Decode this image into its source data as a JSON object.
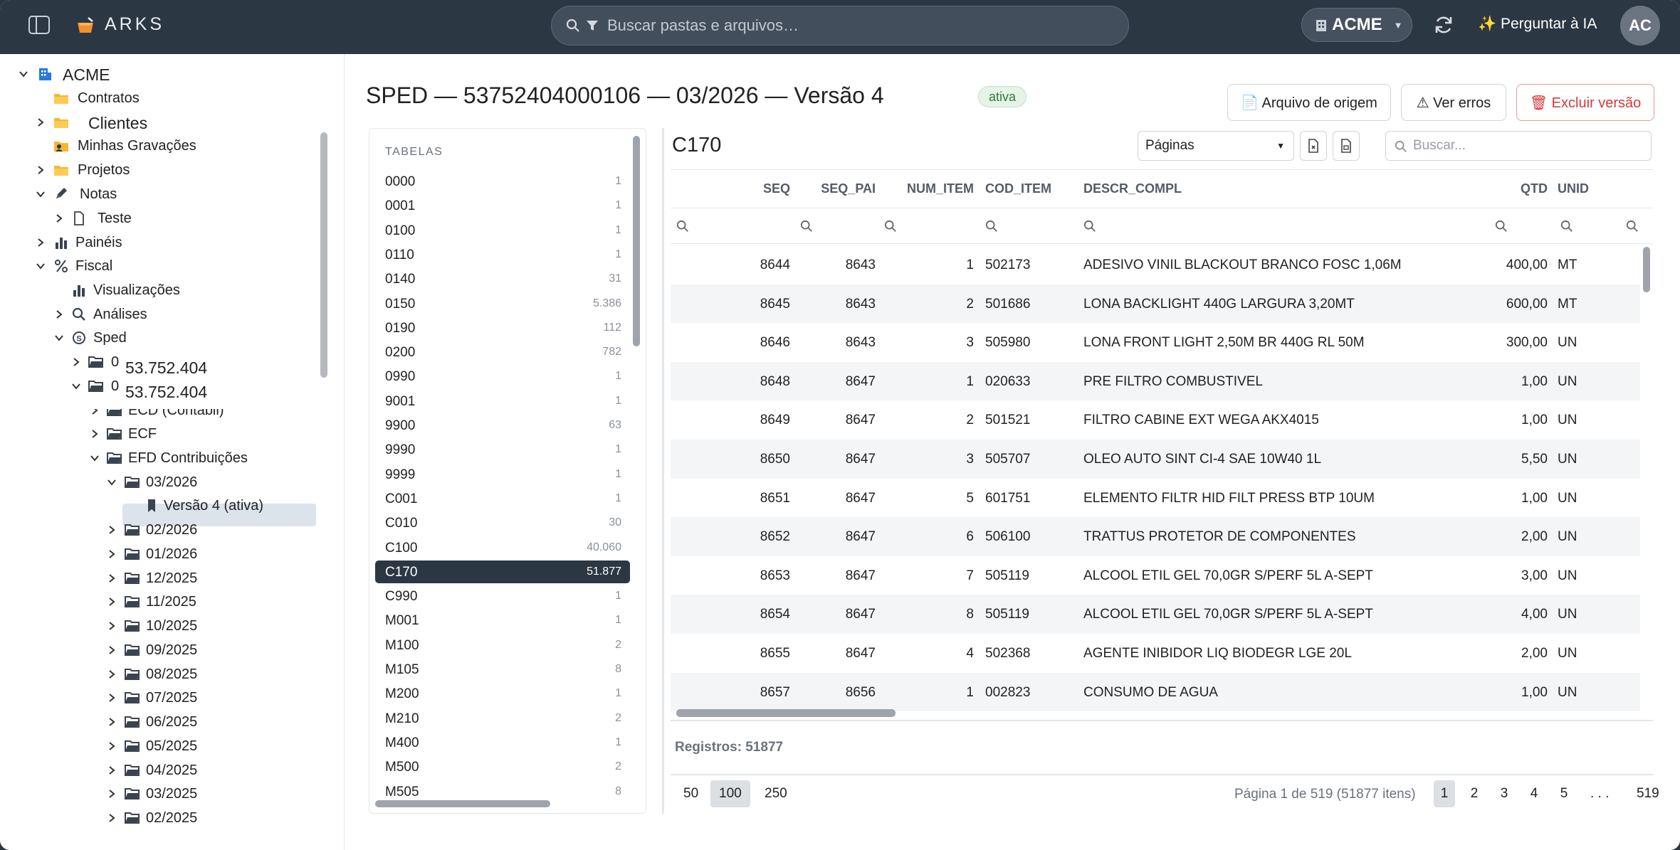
{
  "header": {
    "brand": "ARKS",
    "search_placeholder": "Buscar pastas e arquivos…",
    "tenant": "ACME",
    "ask_ai": "✨ Perguntar à IA",
    "avatar": "AC"
  },
  "sidebar": {
    "items": [
      {
        "label": "ACME",
        "icon": "building-icon"
      },
      {
        "label": "Contratos",
        "icon": "folder-icon"
      },
      {
        "label": "Clientes",
        "icon": "folder-icon"
      },
      {
        "label": "Minhas Gravações",
        "icon": "folder-user-icon"
      },
      {
        "label": "Projetos",
        "icon": "folder-icon"
      },
      {
        "label": "Notas",
        "icon": "pencil-icon"
      },
      {
        "label": "Teste",
        "icon": "file-icon"
      },
      {
        "label": "Painéis",
        "icon": "bar-chart-icon"
      },
      {
        "label": "Fiscal",
        "icon": "percent-icon"
      },
      {
        "label": "Visualizações",
        "icon": "bar-chart-icon"
      },
      {
        "label": "Análises",
        "icon": "search-icon"
      },
      {
        "label": "Sped",
        "icon": "coin-icon"
      },
      {
        "label": "0",
        "sub": "53.752.404",
        "icon": "folder-open-icon"
      },
      {
        "label": "0",
        "sub": "53.752.404",
        "icon": "folder-open-icon"
      },
      {
        "label": "ECD (Contábil)",
        "icon": "folder-open-icon"
      },
      {
        "label": "ECF",
        "icon": "folder-open-icon"
      },
      {
        "label": "EFD Contribuições",
        "icon": "folder-open-icon"
      },
      {
        "label": "03/2026",
        "icon": "folder-open-icon"
      },
      {
        "label": "Versão 4 (ativa)",
        "icon": "bookmark-icon"
      },
      {
        "label": "02/2026",
        "icon": "folder-open-icon"
      },
      {
        "label": "01/2026",
        "icon": "folder-open-icon"
      },
      {
        "label": "12/2025",
        "icon": "folder-open-icon"
      },
      {
        "label": "11/2025",
        "icon": "folder-open-icon"
      },
      {
        "label": "10/2025",
        "icon": "folder-open-icon"
      },
      {
        "label": "09/2025",
        "icon": "folder-open-icon"
      },
      {
        "label": "08/2025",
        "icon": "folder-open-icon"
      },
      {
        "label": "07/2025",
        "icon": "folder-open-icon"
      },
      {
        "label": "06/2025",
        "icon": "folder-open-icon"
      },
      {
        "label": "05/2025",
        "icon": "folder-open-icon"
      },
      {
        "label": "04/2025",
        "icon": "folder-open-icon"
      },
      {
        "label": "03/2025",
        "icon": "folder-open-icon"
      },
      {
        "label": "02/2025",
        "icon": "folder-open-icon"
      }
    ]
  },
  "main": {
    "title": "SPED — 53752404000106 — 03/2026 — Versão 4",
    "status_badge": "ativa",
    "buttons": {
      "origin": "📄 Arquivo de origem",
      "errors": "⚠ Ver erros",
      "delete": "🗑 Excluir versão"
    },
    "tables_heading": "TABELAS",
    "tables": [
      {
        "name": "0000",
        "count": "1"
      },
      {
        "name": "0001",
        "count": "1"
      },
      {
        "name": "0100",
        "count": "1"
      },
      {
        "name": "0110",
        "count": "1"
      },
      {
        "name": "0140",
        "count": "31"
      },
      {
        "name": "0150",
        "count": "5.386"
      },
      {
        "name": "0190",
        "count": "112"
      },
      {
        "name": "0200",
        "count": "782"
      },
      {
        "name": "0990",
        "count": "1"
      },
      {
        "name": "9001",
        "count": "1"
      },
      {
        "name": "9900",
        "count": "63"
      },
      {
        "name": "9990",
        "count": "1"
      },
      {
        "name": "9999",
        "count": "1"
      },
      {
        "name": "C001",
        "count": "1"
      },
      {
        "name": "C010",
        "count": "30"
      },
      {
        "name": "C100",
        "count": "40.060"
      },
      {
        "name": "C170",
        "count": "51.877"
      },
      {
        "name": "C990",
        "count": "1"
      },
      {
        "name": "M001",
        "count": "1"
      },
      {
        "name": "M100",
        "count": "2"
      },
      {
        "name": "M105",
        "count": "8"
      },
      {
        "name": "M200",
        "count": "1"
      },
      {
        "name": "M210",
        "count": "2"
      },
      {
        "name": "M400",
        "count": "1"
      },
      {
        "name": "M500",
        "count": "2"
      },
      {
        "name": "M505",
        "count": "8"
      }
    ],
    "selected_table": "C170",
    "view_mode": "Páginas",
    "grid_search_placeholder": "Buscar...",
    "columns": [
      "SEQ",
      "SEQ_PAI",
      "NUM_ITEM",
      "COD_ITEM",
      "DESCR_COMPL",
      "QTD",
      "UNID"
    ],
    "rows": [
      [
        "8644",
        "8643",
        "1",
        "502173",
        "ADESIVO VINIL BLACKOUT BRANCO FOSC 1,06M",
        "400,00",
        "MT"
      ],
      [
        "8645",
        "8643",
        "2",
        "501686",
        "LONA BACKLIGHT 440G LARGURA 3,20MT",
        "600,00",
        "MT"
      ],
      [
        "8646",
        "8643",
        "3",
        "505980",
        "LONA FRONT LIGHT 2,50M BR 440G RL 50M",
        "300,00",
        "UN"
      ],
      [
        "8648",
        "8647",
        "1",
        "020633",
        "PRE FILTRO COMBUSTIVEL",
        "1,00",
        "UN"
      ],
      [
        "8649",
        "8647",
        "2",
        "501521",
        "FILTRO CABINE EXT WEGA AKX4015",
        "1,00",
        "UN"
      ],
      [
        "8650",
        "8647",
        "3",
        "505707",
        "OLEO AUTO SINT CI-4 SAE 10W40 1L",
        "5,50",
        "UN"
      ],
      [
        "8651",
        "8647",
        "5",
        "601751",
        "ELEMENTO FILTR HID FILT PRESS BTP 10UM",
        "1,00",
        "UN"
      ],
      [
        "8652",
        "8647",
        "6",
        "506100",
        "TRATTUS PROTETOR DE COMPONENTES",
        "2,00",
        "UN"
      ],
      [
        "8653",
        "8647",
        "7",
        "505119",
        "ALCOOL ETIL GEL 70,0GR S/PERF 5L A-SEPT",
        "3,00",
        "UN"
      ],
      [
        "8654",
        "8647",
        "8",
        "505119",
        "ALCOOL ETIL GEL 70,0GR S/PERF 5L A-SEPT",
        "4,00",
        "UN"
      ],
      [
        "8655",
        "8647",
        "4",
        "502368",
        "AGENTE INIBIDOR LIQ BIODEGR LGE 20L",
        "2,00",
        "UN"
      ],
      [
        "8657",
        "8656",
        "1",
        "002823",
        "CONSUMO DE AGUA",
        "1,00",
        "UN"
      ]
    ],
    "records_label": "Registros: 51877",
    "page_sizes": [
      "50",
      "100",
      "250"
    ],
    "selected_page_size": "100",
    "page_info": "Página 1 de 519 (51877 itens)",
    "pages": [
      "1",
      "2",
      "3",
      "4",
      "5",
      ". . .",
      "519"
    ],
    "current_page": "1"
  },
  "colors": {
    "topbar": "#2c3744",
    "selected": "#2c3744",
    "danger": "#d23b3b",
    "folder": "#f5b730",
    "accent_blue": "#2a7ad8"
  }
}
